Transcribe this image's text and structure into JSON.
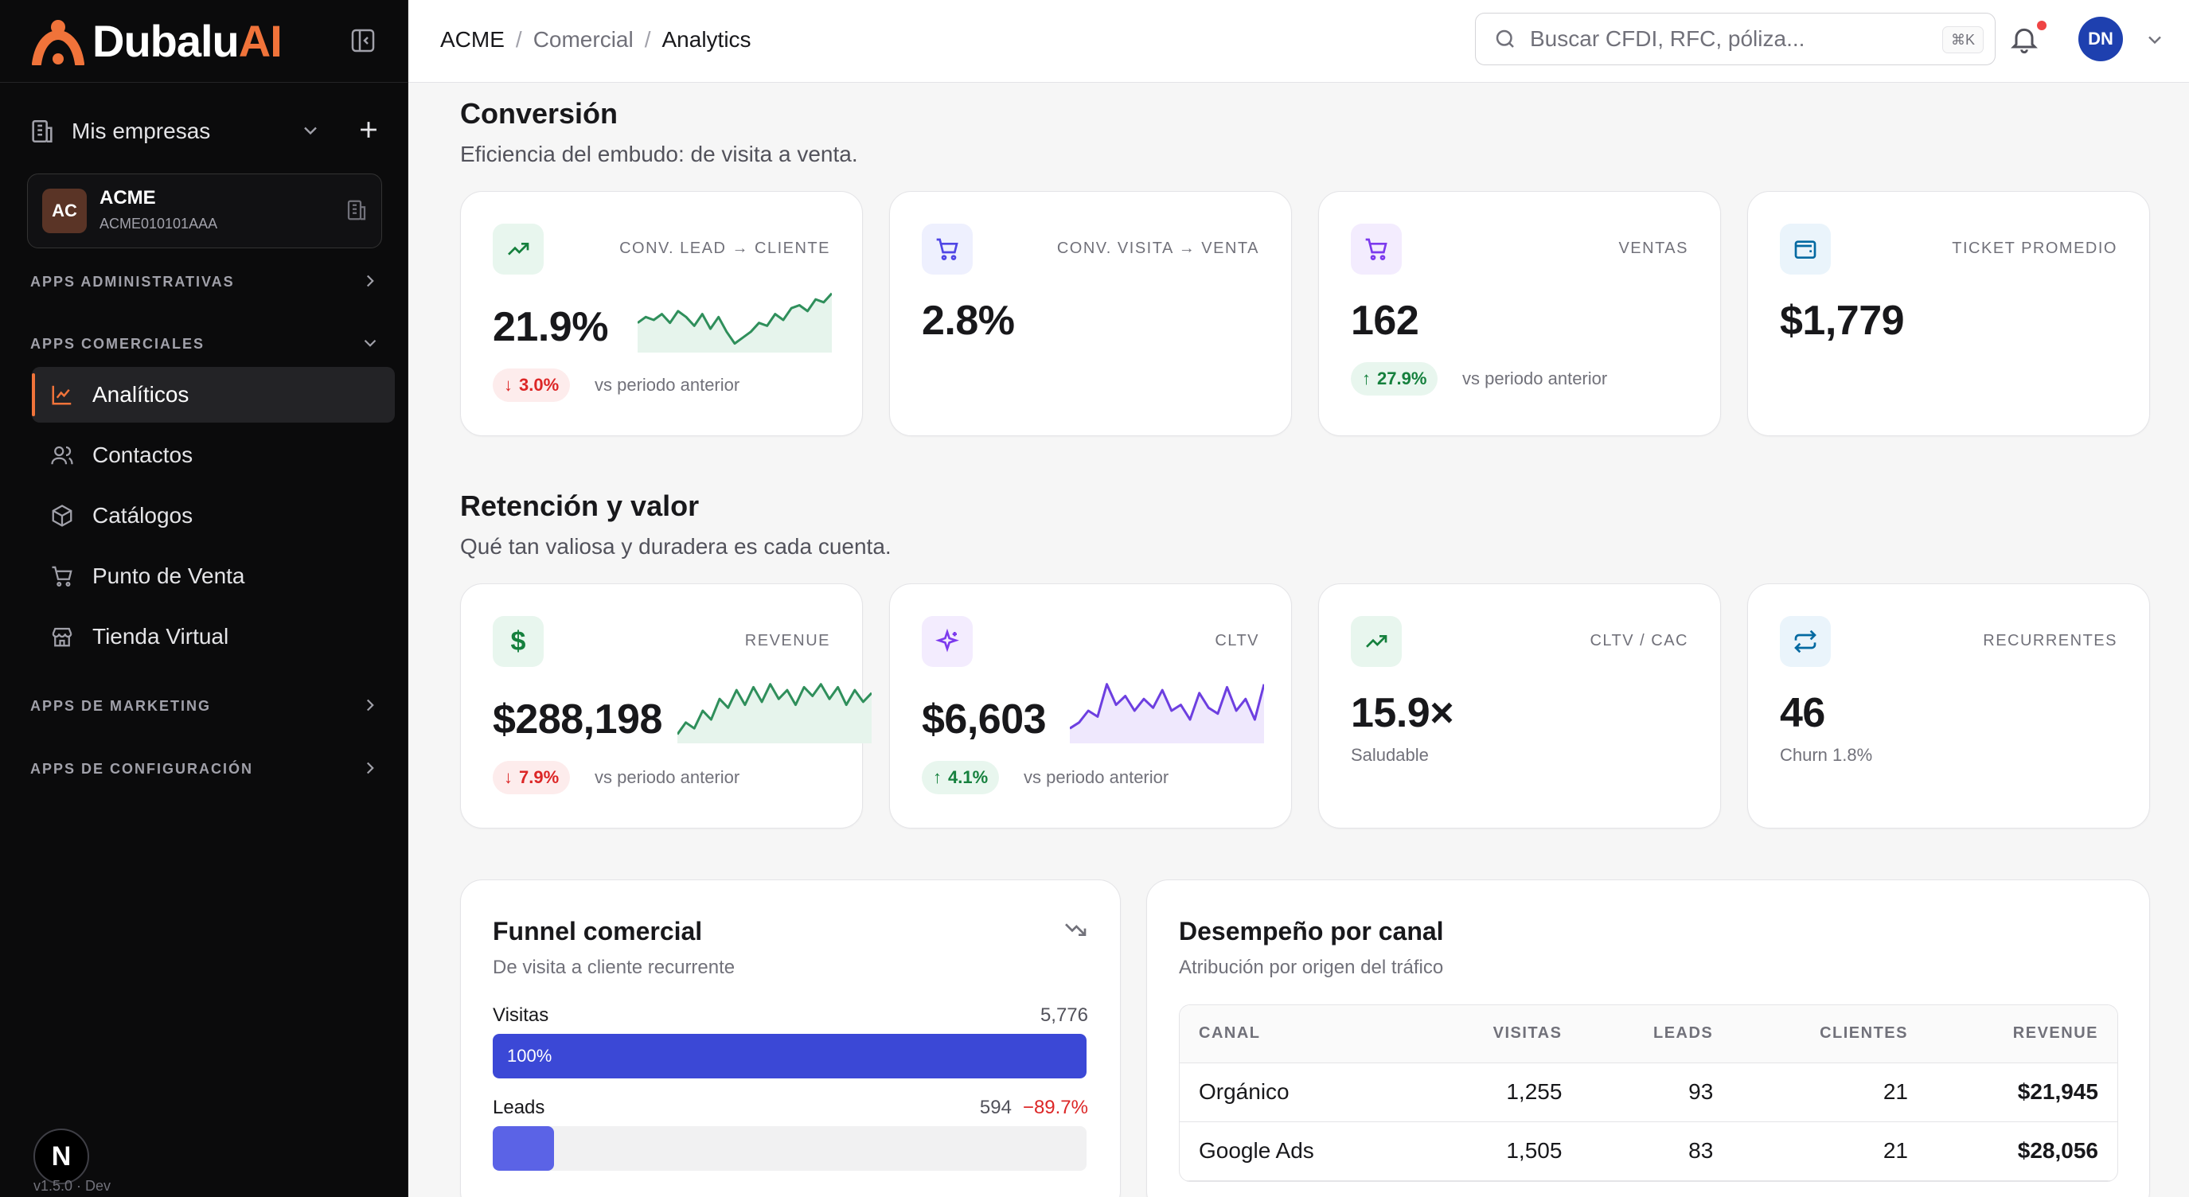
{
  "app": {
    "brand_main": "Dubalu",
    "brand_accent": "AI",
    "accent_color": "#f0733a",
    "version": "v1.5.0 · Dev",
    "badge_letter": "N"
  },
  "sidebar": {
    "empresas_label": "Mis empresas",
    "company": {
      "initials": "AC",
      "name": "ACME",
      "rfc": "ACME010101AAA"
    },
    "sections": {
      "admin": "APPS ADMINISTRATIVAS",
      "comercial": "APPS COMERCIALES",
      "marketing": "APPS DE MARKETING",
      "config": "APPS DE CONFIGURACIÓN"
    },
    "items": [
      {
        "label": "Analíticos",
        "icon": "chart-line-icon"
      },
      {
        "label": "Contactos",
        "icon": "users-icon"
      },
      {
        "label": "Catálogos",
        "icon": "box-icon"
      },
      {
        "label": "Punto de Venta",
        "icon": "cart-icon"
      },
      {
        "label": "Tienda Virtual",
        "icon": "store-icon"
      }
    ]
  },
  "header": {
    "breadcrumb": [
      "ACME",
      "Comercial",
      "Analytics"
    ],
    "search_placeholder": "Buscar CFDI, RFC, póliza...",
    "search_shortcut": "⌘K",
    "avatar_initials": "DN"
  },
  "conversion": {
    "title": "Conversión",
    "subtitle": "Eficiencia del embudo: de visita a venta.",
    "cards": [
      {
        "label": "CONV. LEAD → CLIENTE",
        "value": "21.9%",
        "delta": "3.0%",
        "direction": "down",
        "vs": "vs periodo anterior",
        "icon": "trend-up-icon",
        "spark": [
          0.45,
          0.55,
          0.5,
          0.6,
          0.45,
          0.65,
          0.55,
          0.4,
          0.6,
          0.35,
          0.55,
          0.3,
          0.1,
          0.2,
          0.3,
          0.45,
          0.4,
          0.6,
          0.5,
          0.7,
          0.75,
          0.65,
          0.85,
          0.8,
          0.95
        ]
      },
      {
        "label": "CONV. VISITA → VENTA",
        "value": "2.8%",
        "icon": "cart-icon"
      },
      {
        "label": "VENTAS",
        "value": "162",
        "delta": "27.9%",
        "direction": "up",
        "vs": "vs periodo anterior",
        "icon": "cart-icon"
      },
      {
        "label": "TICKET PROMEDIO",
        "value": "$1,779",
        "icon": "wallet-icon"
      }
    ]
  },
  "retention": {
    "title": "Retención y valor",
    "subtitle": "Qué tan valiosa y duradera es cada cuenta.",
    "cards": [
      {
        "label": "REVENUE",
        "value": "$288,198",
        "delta": "7.9%",
        "direction": "down",
        "vs": "vs periodo anterior",
        "icon": "dollar-icon",
        "spark": [
          0.1,
          0.3,
          0.2,
          0.5,
          0.35,
          0.7,
          0.55,
          0.85,
          0.6,
          0.9,
          0.65,
          0.95,
          0.7,
          0.85,
          0.6,
          0.9,
          0.75,
          0.95,
          0.7,
          0.9,
          0.6,
          0.85,
          0.65,
          0.8
        ]
      },
      {
        "label": "CLTV",
        "value": "$6,603",
        "delta": "4.1%",
        "direction": "up",
        "vs": "vs periodo anterior",
        "icon": "sparkles-icon",
        "spark": [
          0.2,
          0.3,
          0.5,
          0.4,
          0.95,
          0.6,
          0.75,
          0.5,
          0.7,
          0.55,
          0.85,
          0.5,
          0.6,
          0.35,
          0.8,
          0.55,
          0.45,
          0.9,
          0.5,
          0.7,
          0.35,
          0.95
        ]
      },
      {
        "label": "CLTV / CAC",
        "value": "15.9×",
        "note": "Saludable",
        "icon": "trend-up-icon"
      },
      {
        "label": "RECURRENTES",
        "value": "46",
        "note": "Churn 1.8%",
        "icon": "repeat-icon"
      }
    ]
  },
  "funnel": {
    "title": "Funnel comercial",
    "subtitle": "De visita a cliente recurrente",
    "stages": [
      {
        "name": "Visitas",
        "value": "5,776",
        "drop": "",
        "pct_label": "100%",
        "fraction": 1.0,
        "color": "#3b48d6"
      },
      {
        "name": "Leads",
        "value": "594",
        "drop": "−89.7%",
        "pct_label": "",
        "fraction": 0.103,
        "color": "#5b63e6"
      }
    ]
  },
  "channels": {
    "title": "Desempeño por canal",
    "subtitle": "Atribución por origen del tráfico",
    "columns": [
      "CANAL",
      "VISITAS",
      "LEADS",
      "CLIENTES",
      "REVENUE"
    ],
    "rows": [
      [
        "Orgánico",
        "1,255",
        "93",
        "21",
        "$21,945"
      ],
      [
        "Google Ads",
        "1,505",
        "83",
        "21",
        "$28,056"
      ]
    ]
  }
}
